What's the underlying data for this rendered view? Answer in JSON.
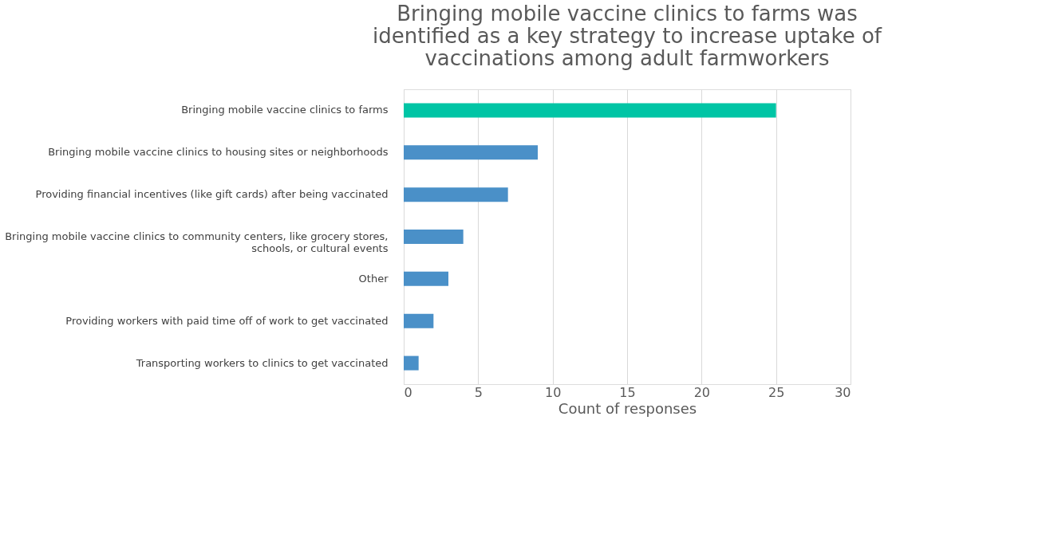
{
  "chart_data": {
    "type": "bar",
    "orientation": "horizontal",
    "title": "Bringing mobile vaccine clinics to farms was identified as a key strategy to increase uptake of vaccinations among adult farmworkers",
    "categories": [
      "Bringing mobile vaccine clinics to farms",
      "Bringing mobile vaccine clinics to housing sites or neighborhoods",
      "Providing financial incentives (like gift cards) after being vaccinated",
      "Bringing mobile vaccine clinics to community centers, like grocery stores, schools, or cultural events",
      "Other",
      "Providing workers with paid time off of work to get vaccinated",
      "Transporting workers to clinics to get vaccinated"
    ],
    "values": [
      25,
      9,
      7,
      4,
      3,
      2,
      1
    ],
    "colors": [
      "#00c5a5",
      "#4a90c8",
      "#4a90c8",
      "#4a90c8",
      "#4a90c8",
      "#4a90c8",
      "#4a90c8"
    ],
    "xlabel": "Count of responses",
    "xlim": [
      0,
      30
    ],
    "xticks": [
      0,
      5,
      10,
      15,
      20,
      25,
      30
    ],
    "grid": "x"
  }
}
